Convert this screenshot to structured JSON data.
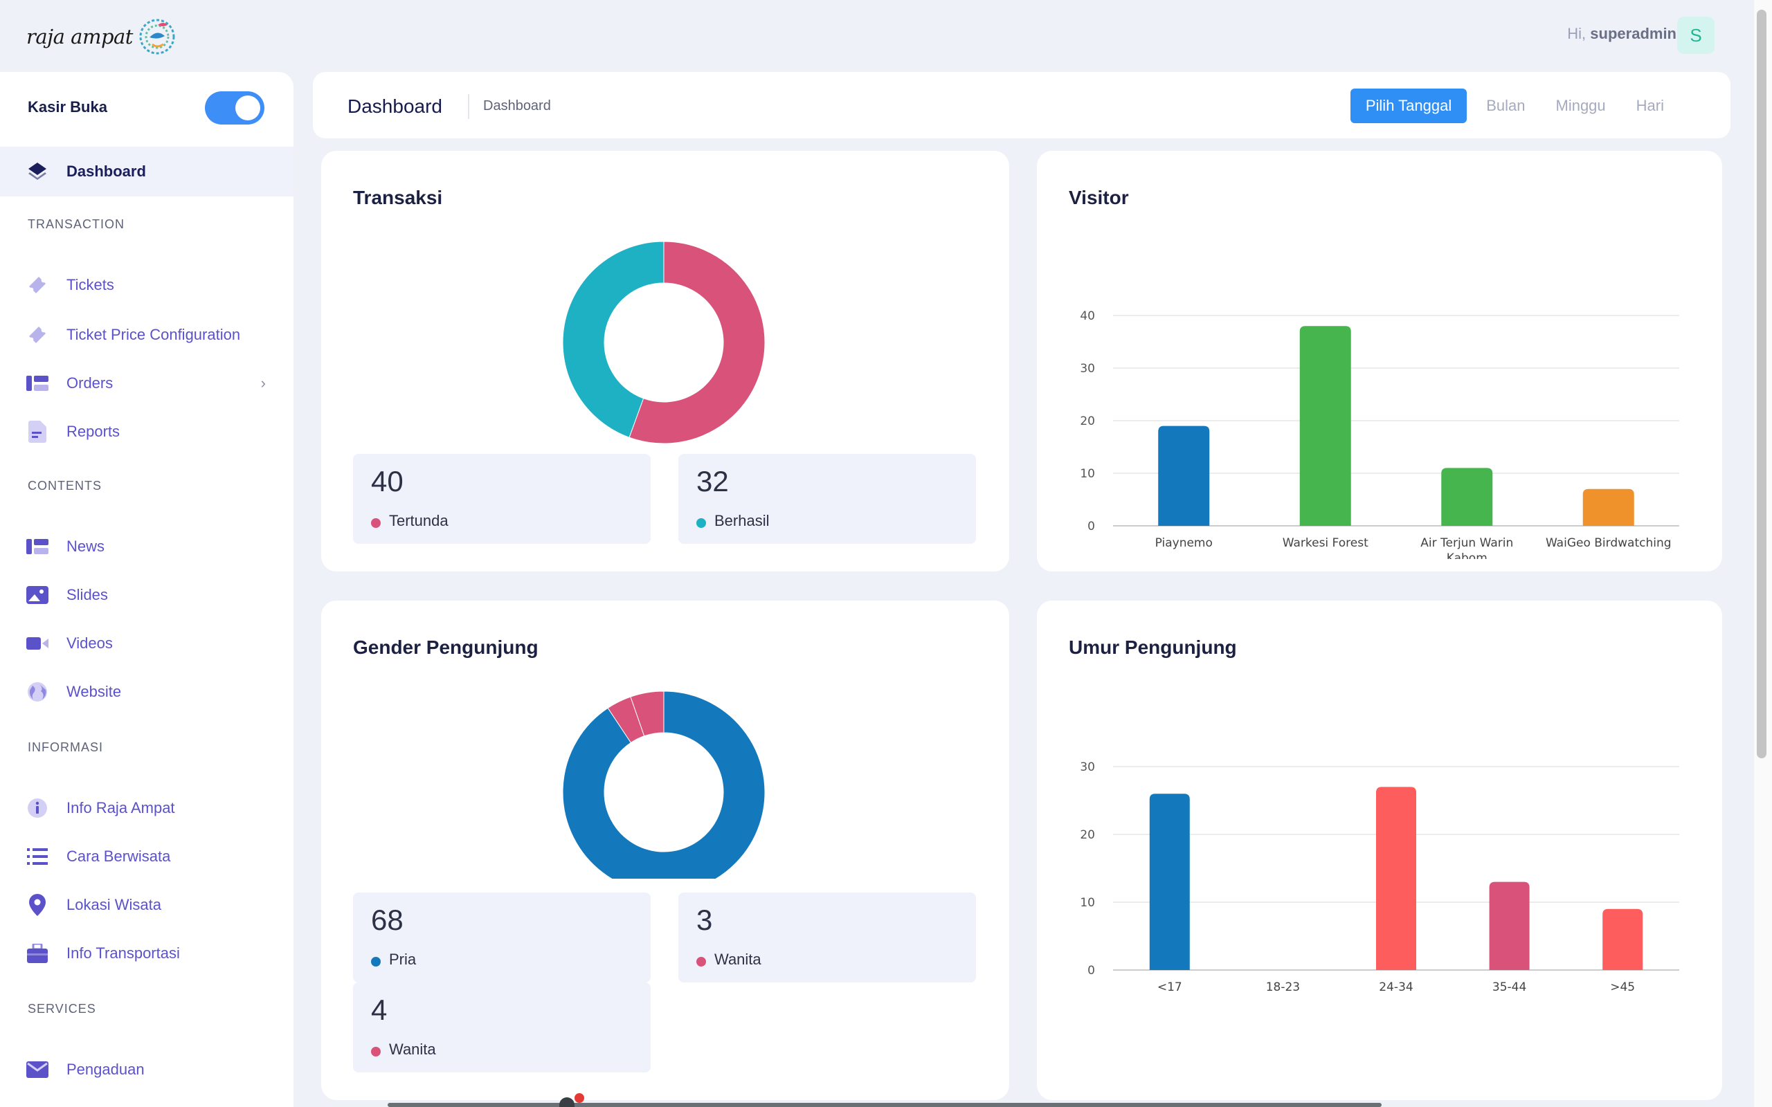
{
  "header": {
    "logo_text": "raja ampat",
    "greeting_prefix": "Hi,",
    "username": "superadmin",
    "avatar_initial": "S"
  },
  "sidebar": {
    "kasir_label": "Kasir Buka",
    "kasir_enabled": true,
    "active_item": {
      "label": "Dashboard",
      "icon": "layers-icon"
    },
    "sections": [
      {
        "title": "TRANSACTION",
        "items": [
          {
            "label": "Tickets",
            "icon": "ticket-icon"
          },
          {
            "label": "Ticket Price Configuration",
            "icon": "ticket-icon"
          },
          {
            "label": "Orders",
            "icon": "list-icon",
            "has_submenu": true
          },
          {
            "label": "Reports",
            "icon": "document-icon"
          }
        ]
      },
      {
        "title": "CONTENTS",
        "items": [
          {
            "label": "News",
            "icon": "list-icon"
          },
          {
            "label": "Slides",
            "icon": "image-icon"
          },
          {
            "label": "Videos",
            "icon": "video-icon"
          },
          {
            "label": "Website",
            "icon": "globe-icon"
          }
        ]
      },
      {
        "title": "INFORMASI",
        "items": [
          {
            "label": "Info Raja Ampat",
            "icon": "info-icon"
          },
          {
            "label": "Cara Berwisata",
            "icon": "bullet-list-icon"
          },
          {
            "label": "Lokasi Wisata",
            "icon": "map-pin-icon"
          },
          {
            "label": "Info Transportasi",
            "icon": "briefcase-icon"
          }
        ]
      },
      {
        "title": "SERVICES",
        "items": [
          {
            "label": "Pengaduan",
            "icon": "mail-icon"
          }
        ]
      }
    ]
  },
  "page_header": {
    "title": "Dashboard",
    "breadcrumb": "Dashboard",
    "tabs": [
      "Pilih Tanggal",
      "Bulan",
      "Minggu",
      "Hari"
    ],
    "active_tab": "Pilih Tanggal"
  },
  "colors": {
    "accent": "#2f8ff4",
    "pink": "#d9527a",
    "teal": "#1eb0c3",
    "blue": "#1479bc",
    "green": "#46b54d",
    "orange": "#f0922c",
    "coral": "#fd5d5d"
  },
  "transaksi": {
    "title": "Transaksi",
    "stats": [
      {
        "value": "40",
        "label": "Tertunda",
        "color": "#d9527a"
      },
      {
        "value": "32",
        "label": "Berhasil",
        "color": "#1eb0c3"
      }
    ]
  },
  "gender": {
    "title": "Gender Pengunjung",
    "stats": [
      {
        "value": "68",
        "label": "Pria",
        "color": "#1479bc"
      },
      {
        "value": "3",
        "label": "Wanita",
        "color": "#d9527a"
      },
      {
        "value": "4",
        "label": "Wanita",
        "color": "#d9527a"
      }
    ]
  },
  "chart_data": [
    {
      "type": "pie",
      "title": "Transaksi",
      "categories": [
        "Tertunda",
        "Berhasil"
      ],
      "values": [
        40,
        32
      ],
      "colors": [
        "#d9527a",
        "#1eb0c3"
      ],
      "donut": true
    },
    {
      "type": "bar",
      "title": "Visitor",
      "categories": [
        "Piaynemo",
        "Warkesi Forest",
        "Air Terjun Warin Kabom",
        "WaiGeo Birdwatching"
      ],
      "category_lines": [
        [
          "Piaynemo"
        ],
        [
          "Warkesi Forest"
        ],
        [
          "Air Terjun Warin",
          "Kabom"
        ],
        [
          "WaiGeo Birdwatching"
        ]
      ],
      "values": [
        19,
        38,
        11,
        7
      ],
      "colors": [
        "#1479bc",
        "#46b54d",
        "#46b54d",
        "#f0922c"
      ],
      "yticks": [
        "0",
        "10",
        "20",
        "30",
        "40"
      ],
      "ylim": [
        0,
        40
      ],
      "grid": true
    },
    {
      "type": "pie",
      "title": "Gender Pengunjung",
      "categories": [
        "Pria",
        "Wanita",
        "Wanita"
      ],
      "values": [
        68,
        3,
        4
      ],
      "colors": [
        "#1479bc",
        "#d9527a",
        "#d9527a"
      ],
      "donut": true
    },
    {
      "type": "bar",
      "title": "Umur Pengunjung",
      "categories": [
        "<17",
        "18-23",
        "24-34",
        "35-44",
        ">45"
      ],
      "values": [
        26,
        0,
        27,
        13,
        9
      ],
      "colors": [
        "#1479bc",
        "#d9527a",
        "#fd5d5d",
        "#d9527a",
        "#fd5d5d"
      ],
      "yticks": [
        "0",
        "10",
        "20",
        "30"
      ],
      "ylim": [
        0,
        30
      ],
      "grid": true
    }
  ]
}
